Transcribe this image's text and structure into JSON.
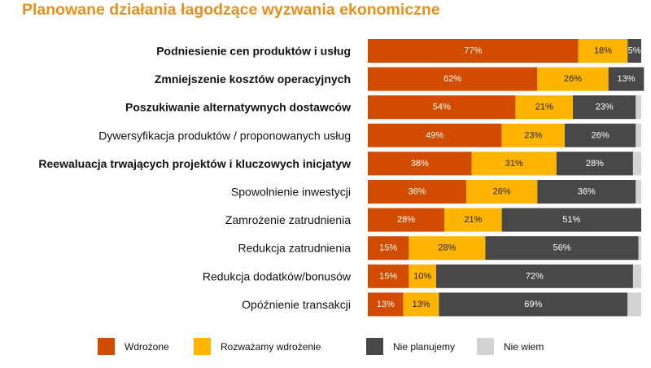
{
  "chart_data": {
    "type": "bar",
    "orientation": "horizontal",
    "stacked": true,
    "title": "Planowane działania łagodzące wyzwania ekonomiczne",
    "categories": [
      "Podniesienie cen produktów i usług",
      "Zmniejszenie kosztów operacyjnych",
      "Poszukiwanie alternatywnych dostawców",
      "Dywersyfikacja produktów / proponowanych usług",
      "Reewaluacja trwających projektów i kluczowych inicjatyw",
      "Spowolnienie inwestycji",
      "Zamrożenie zatrudnienia",
      "Redukcja zatrudnienia",
      "Redukcja dodatków/bonusów",
      "Opóźnienie transakcji"
    ],
    "bold_categories": [
      0,
      1,
      2,
      4
    ],
    "series": [
      {
        "name": "Wdrożone",
        "color": "#d24c00",
        "label_color": "#ffffff",
        "values": [
          77,
          62,
          54,
          49,
          38,
          36,
          28,
          15,
          15,
          13
        ],
        "labels": [
          "77%",
          "62%",
          "54%",
          "49%",
          "38%",
          "36%",
          "28%",
          "15%",
          "15%",
          "13%"
        ]
      },
      {
        "name": "Rozważamy wdrożenie",
        "color": "#ffb400",
        "label_color": "#222222",
        "values": [
          18,
          26,
          21,
          23,
          31,
          26,
          21,
          28,
          10,
          13
        ],
        "labels": [
          "18%",
          "26%",
          "21%",
          "23%",
          "31%",
          "26%",
          "21%",
          "28%",
          "10%",
          "13%"
        ]
      },
      {
        "name": "Nie planujemy",
        "color": "#484848",
        "label_color": "#ffffff",
        "values": [
          5,
          13,
          23,
          26,
          28,
          36,
          51,
          56,
          72,
          69
        ],
        "labels": [
          "5%",
          "13%",
          "23%",
          "26%",
          "28%",
          "36%",
          "51%",
          "56%",
          "72%",
          "69%"
        ]
      },
      {
        "name": "Nie wiem",
        "color": "#d3d3d3",
        "label_color": "#222222",
        "values": [
          0,
          0,
          2,
          2,
          3,
          2,
          0,
          1,
          3,
          5
        ],
        "labels": [
          "",
          "",
          "",
          "",
          "",
          "",
          "",
          "",
          "",
          ""
        ]
      }
    ],
    "xlim": [
      0,
      100
    ],
    "grid": false,
    "legend_position": "bottom"
  }
}
